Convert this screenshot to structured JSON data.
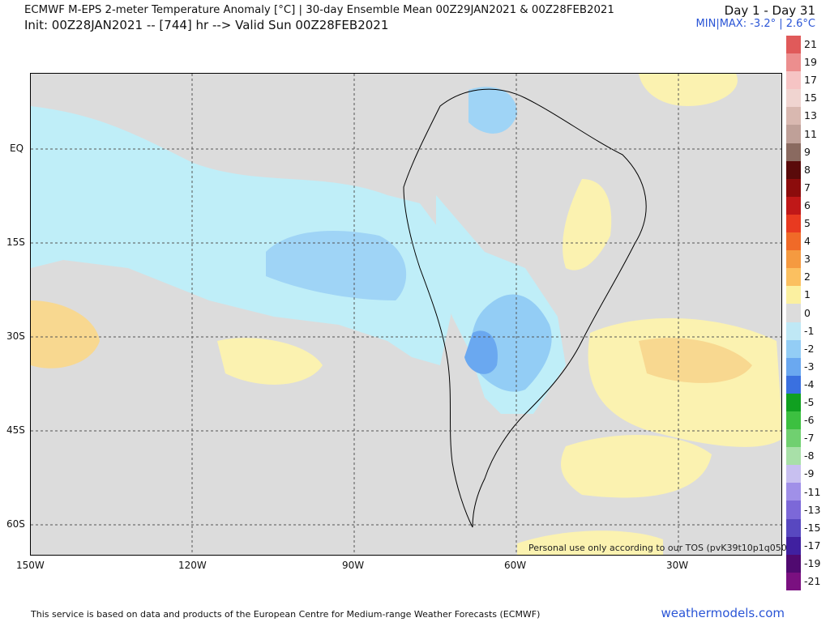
{
  "header": {
    "title": "ECMWF M-EPS 2-meter Temperature Anomaly [°C] | 30-day Ensemble Mean 00Z29JAN2021 & 00Z28FEB2021",
    "init": "Init: 00Z28JAN2021 -- [744] hr --> Valid Sun 00Z28FEB2021",
    "day_range": "Day 1 - Day 31",
    "min_max": "MIN|MAX: -3.2° | 2.6°C"
  },
  "map": {
    "lat_labels": [
      "EQ",
      "15S",
      "30S",
      "45S",
      "60S"
    ],
    "lon_labels": [
      "150W",
      "120W",
      "90W",
      "60W",
      "30W"
    ],
    "tos_notice": "Personal use only according to our TOS (pvK39t10p1q050)"
  },
  "colorbar": {
    "labels": [
      "21",
      "19",
      "17",
      "15",
      "13",
      "11",
      "9",
      "8",
      "7",
      "6",
      "5",
      "4",
      "3",
      "2",
      "1",
      "0",
      "-1",
      "-2",
      "-3",
      "-4",
      "-5",
      "-6",
      "-7",
      "-8",
      "-9",
      "-11",
      "-13",
      "-15",
      "-17",
      "-19",
      "-21"
    ],
    "colors": [
      "#e05a5a",
      "#ec8e8e",
      "#f6c4c4",
      "#f0d4d0",
      "#d9b8b0",
      "#bfa098",
      "#8a6a60",
      "#5a0a0a",
      "#8c0c0c",
      "#c01818",
      "#e83a20",
      "#f06a28",
      "#f59a40",
      "#fbc060",
      "#fbf0a0",
      "#dcdcdc",
      "#bfe8f5",
      "#93cdf5",
      "#6aa8f0",
      "#3a70e0",
      "#10a020",
      "#3cc040",
      "#70d070",
      "#a8e0a8",
      "#c8c0f0",
      "#a090e8",
      "#7c68d8",
      "#5848c0",
      "#4020a0",
      "#500a70",
      "#7a1080",
      "#a02898",
      "#c850b8",
      "#e870d8"
    ],
    "colors_used_count": 31
  },
  "footer": {
    "credit": "This service is based on data and products of the European Centre for Medium-range Weather Forecasts (ECMWF)",
    "brand": "weathermodels.com"
  }
}
